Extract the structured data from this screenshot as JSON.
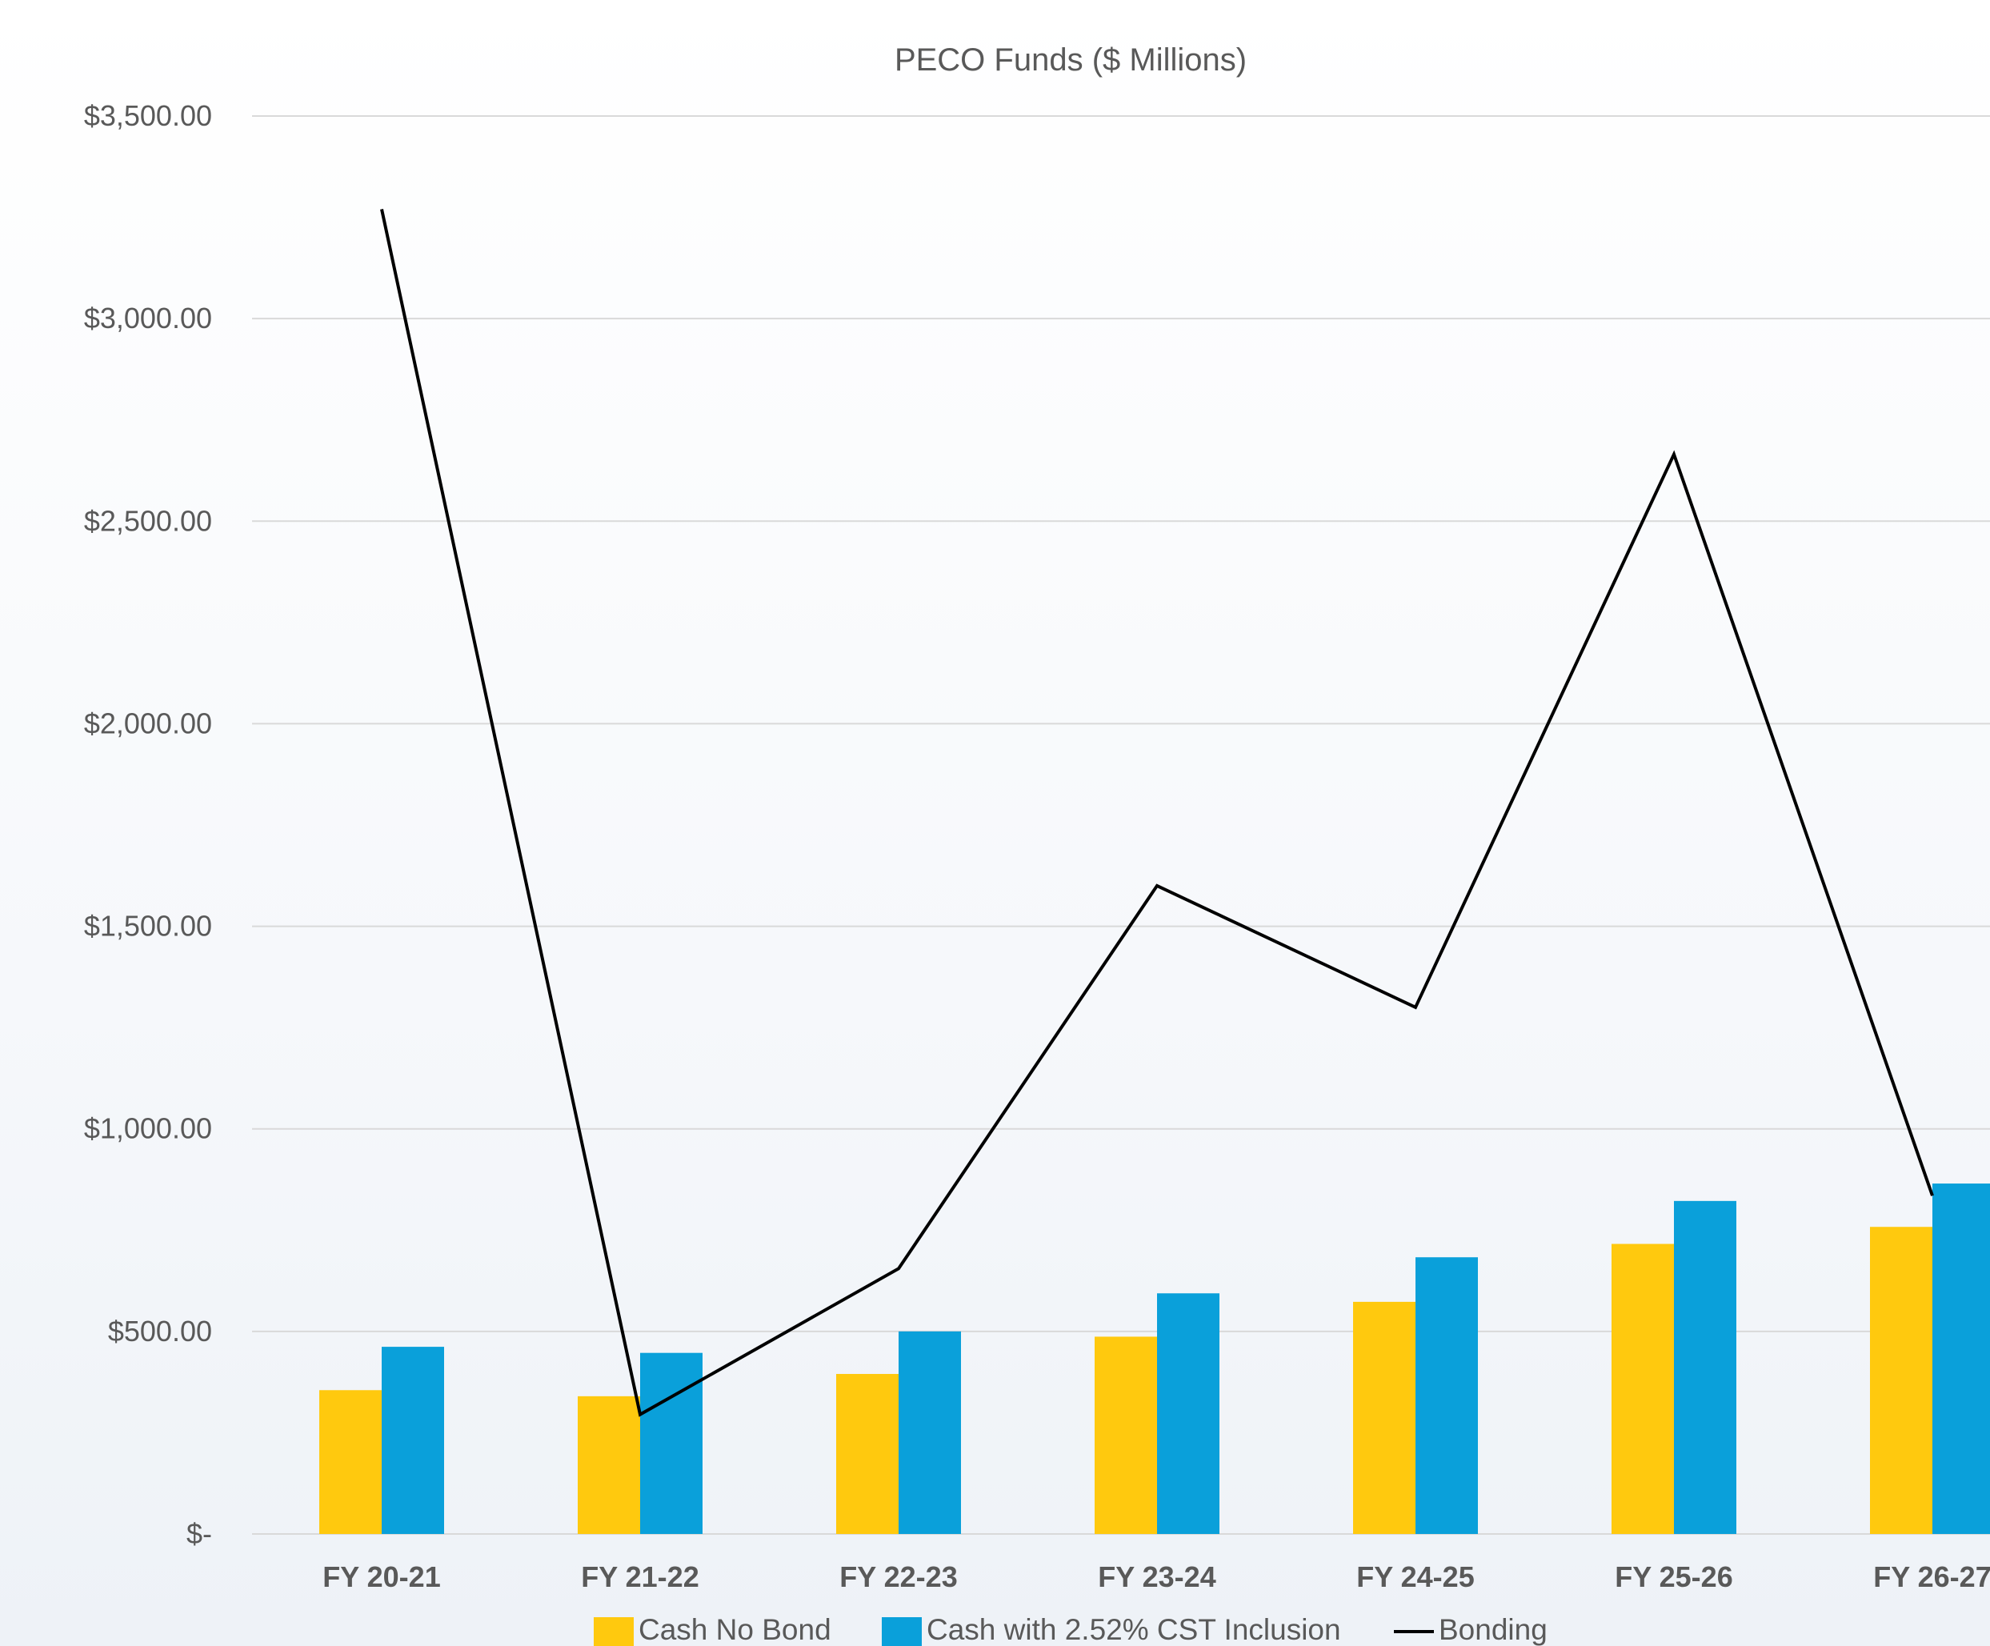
{
  "chart_data": {
    "type": "bar",
    "title": "PECO Funds ($ Millions)",
    "categories": [
      "FY 20-21",
      "FY  21-22",
      "FY 22-23",
      "FY 23-24",
      "FY 24-25",
      "FY 25-26",
      "FY 26-27"
    ],
    "series": [
      {
        "name": "Cash No Bond",
        "type": "bar",
        "color": "#FFC90E",
        "values": [
          355,
          340,
          395,
          487,
          573,
          716,
          758
        ]
      },
      {
        "name": "Cash with 2.52% CST Inclusion",
        "type": "bar",
        "color": "#0AA0DA",
        "values": [
          462,
          447,
          500,
          594,
          683,
          822,
          865
        ]
      },
      {
        "name": "Bonding",
        "type": "line",
        "color": "#000000",
        "values": [
          3270,
          295,
          655,
          1600,
          1300,
          2665,
          835
        ]
      }
    ],
    "yticks": [
      "$-",
      "$500.00",
      "$1,000.00",
      "$1,500.00",
      "$2,000.00",
      "$2,500.00",
      "$3,000.00",
      "$3,500.00"
    ],
    "ylim": [
      0,
      3500
    ],
    "grid": true,
    "legend_position": "bottom"
  }
}
